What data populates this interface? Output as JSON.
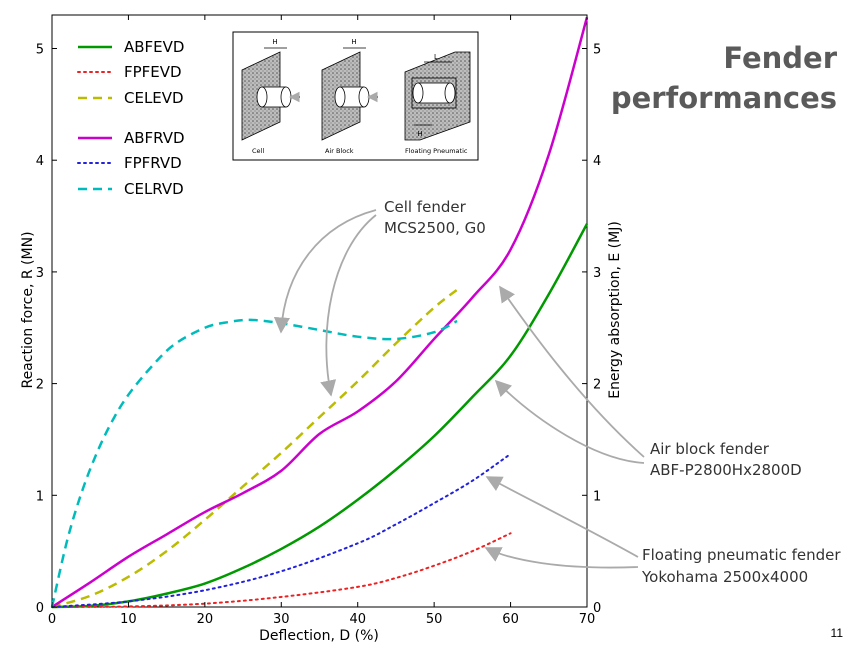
{
  "slide": {
    "title_line1": "Fender",
    "title_line2": "performances",
    "page_number": "11"
  },
  "inset": {
    "labels": [
      "Cell",
      "Air Block",
      "Floating Pneumatic"
    ],
    "dim_labels": [
      "H",
      "H",
      "L",
      "H"
    ]
  },
  "annotations": [
    {
      "id": "cell",
      "lines": [
        "Cell fender",
        "MCS2500, G0"
      ]
    },
    {
      "id": "air",
      "lines": [
        "Air block fender",
        "ABF-P2800Hx2800D"
      ]
    },
    {
      "id": "float",
      "lines": [
        "Floating pneumatic fender",
        "Yokohama 2500x4000"
      ]
    }
  ],
  "chart_data": {
    "type": "line",
    "xlabel": "Deflection, D (%)",
    "ylabel": "Reaction force, R (MN)",
    "y2label": "Energy absorption, E (MJ)",
    "xlim": [
      0,
      70
    ],
    "ylim": [
      0,
      5.3
    ],
    "y2lim": [
      0,
      5.3
    ],
    "xticks": [
      0,
      10,
      20,
      30,
      40,
      50,
      60,
      70
    ],
    "yticks": [
      0,
      1,
      2,
      3,
      4,
      5
    ],
    "y2ticks": [
      0,
      1,
      2,
      3,
      4,
      5
    ],
    "legend_position": "top-left",
    "series": [
      {
        "name": "ABFEVD",
        "color": "#009900",
        "dash": "solid",
        "axis": "right",
        "x": [
          0,
          5,
          10,
          15,
          20,
          25,
          30,
          35,
          40,
          45,
          50,
          55,
          60,
          65,
          70
        ],
        "y": [
          0,
          0.01,
          0.05,
          0.12,
          0.21,
          0.35,
          0.52,
          0.72,
          0.96,
          1.23,
          1.53,
          1.88,
          2.25,
          2.8,
          3.43
        ]
      },
      {
        "name": "FPFEVD",
        "color": "#ee2222",
        "dash": "dot",
        "axis": "right",
        "x": [
          0,
          10,
          20,
          30,
          40,
          45,
          50,
          55,
          60
        ],
        "y": [
          0,
          0.005,
          0.03,
          0.09,
          0.18,
          0.26,
          0.37,
          0.5,
          0.66
        ]
      },
      {
        "name": "CELEVD",
        "color": "#bbbb00",
        "dash": "dash",
        "axis": "right",
        "x": [
          0,
          5,
          10,
          15,
          20,
          25,
          30,
          35,
          40,
          45,
          50,
          53
        ],
        "y": [
          0,
          0.1,
          0.27,
          0.5,
          0.78,
          1.08,
          1.38,
          1.7,
          2.02,
          2.36,
          2.68,
          2.84
        ]
      },
      {
        "name": "ABFRVD",
        "color": "#cc00cc",
        "dash": "solid",
        "axis": "left",
        "x": [
          0,
          5,
          10,
          15,
          20,
          25,
          30,
          35,
          40,
          45,
          50,
          55,
          60,
          65,
          70
        ],
        "y": [
          0,
          0.22,
          0.45,
          0.65,
          0.85,
          1.02,
          1.22,
          1.55,
          1.75,
          2.02,
          2.4,
          2.77,
          3.2,
          4.05,
          5.28
        ]
      },
      {
        "name": "FPFRVD",
        "color": "#2222dd",
        "dash": "dot",
        "axis": "left",
        "x": [
          0,
          10,
          20,
          30,
          40,
          45,
          50,
          55,
          60
        ],
        "y": [
          0,
          0.05,
          0.15,
          0.32,
          0.57,
          0.74,
          0.93,
          1.13,
          1.37
        ]
      },
      {
        "name": "CELRVD",
        "color": "#00bbbb",
        "dash": "dash",
        "axis": "left",
        "x": [
          0,
          2,
          4,
          6,
          8,
          10,
          13,
          16,
          20,
          23,
          26,
          30,
          35,
          40,
          45,
          50,
          53
        ],
        "y": [
          0,
          0.6,
          1.05,
          1.4,
          1.68,
          1.9,
          2.15,
          2.35,
          2.5,
          2.55,
          2.57,
          2.54,
          2.48,
          2.42,
          2.4,
          2.46,
          2.56
        ]
      }
    ]
  }
}
